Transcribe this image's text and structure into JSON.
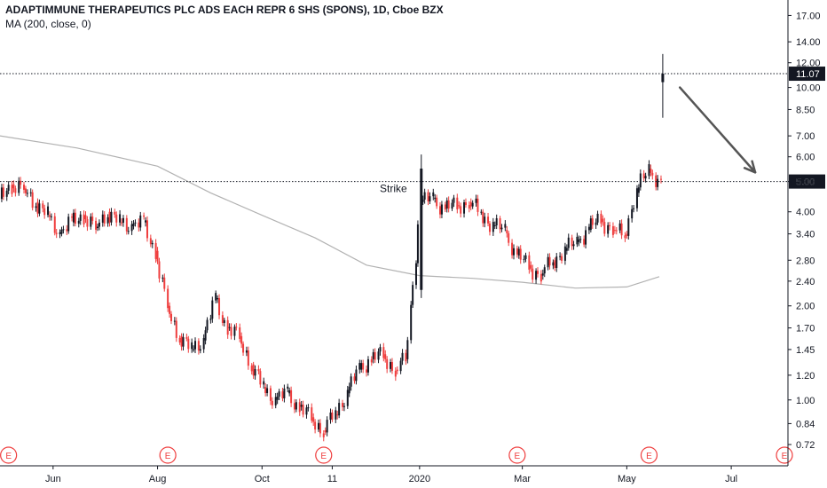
{
  "header": {
    "title": "ADAPTIMMUNE THERAPEUTICS PLC ADS EACH REPR 6 SHS (SPONS), 1D, Cboe BZX",
    "indicator": "MA (200, close, 0)"
  },
  "chart_data": {
    "type": "candlestick",
    "scale": "log",
    "ylim": [
      0.67,
      18.2
    ],
    "y_ticks": [
      "17.00",
      "14.00",
      "12.00",
      "10.00",
      "8.50",
      "7.00",
      "6.00",
      "5.00",
      "4.00",
      "3.40",
      "2.80",
      "2.40",
      "2.00",
      "1.70",
      "1.45",
      "1.20",
      "1.00",
      "0.84",
      "0.72"
    ],
    "x_ticks": [
      "Jun",
      "Aug",
      "Oct",
      "11",
      "2020",
      "Mar",
      "May",
      "Jul"
    ],
    "x_range": [
      "2019-05-01",
      "2020-07-31"
    ],
    "price_lines": [
      {
        "value": 11.07,
        "label": "11.07"
      },
      {
        "value": 5.0,
        "label": "5.00"
      }
    ],
    "annotations": [
      {
        "text": "Strike"
      }
    ],
    "earnings_marker_label": "E",
    "colors": {
      "up": "#131722",
      "down": "#ef3d3d",
      "ma": "#b2b2b2",
      "arrow": "#555555",
      "earnings": "#ef3d3d",
      "badge": "#131722"
    },
    "candles": [
      {
        "date": "2019-05-01",
        "close": 4.4
      },
      {
        "date": "2019-05-08",
        "close": 4.9
      },
      {
        "date": "2019-05-15",
        "close": 4.75
      },
      {
        "date": "2019-05-22",
        "close": 4.3
      },
      {
        "date": "2019-05-29",
        "close": 3.9
      },
      {
        "date": "2019-06-05",
        "close": 3.4
      },
      {
        "date": "2019-06-12",
        "close": 3.7
      },
      {
        "date": "2019-06-19",
        "close": 3.9
      },
      {
        "date": "2019-06-26",
        "close": 3.55
      },
      {
        "date": "2019-07-03",
        "close": 4.0
      },
      {
        "date": "2019-07-10",
        "close": 3.7
      },
      {
        "date": "2019-07-17",
        "close": 3.6
      },
      {
        "date": "2019-07-24",
        "close": 3.7
      },
      {
        "date": "2019-07-31",
        "close": 3.0
      },
      {
        "date": "2019-08-07",
        "close": 2.0
      },
      {
        "date": "2019-08-14",
        "close": 1.6
      },
      {
        "date": "2019-08-21",
        "close": 1.45
      },
      {
        "date": "2019-08-28",
        "close": 1.55
      },
      {
        "date": "2019-09-04",
        "close": 2.1
      },
      {
        "date": "2019-09-11",
        "close": 1.7
      },
      {
        "date": "2019-09-18",
        "close": 1.6
      },
      {
        "date": "2019-09-25",
        "close": 1.3
      },
      {
        "date": "2019-10-02",
        "close": 1.1
      },
      {
        "date": "2019-10-09",
        "close": 1.0
      },
      {
        "date": "2019-10-16",
        "close": 1.05
      },
      {
        "date": "2019-10-23",
        "close": 0.95
      },
      {
        "date": "2019-10-30",
        "close": 0.88
      },
      {
        "date": "2019-11-06",
        "close": 0.8
      },
      {
        "date": "2019-11-13",
        "close": 0.9
      },
      {
        "date": "2019-11-20",
        "close": 1.05
      },
      {
        "date": "2019-11-27",
        "close": 1.25
      },
      {
        "date": "2019-12-04",
        "close": 1.35
      },
      {
        "date": "2019-12-11",
        "close": 1.4
      },
      {
        "date": "2019-12-18",
        "close": 1.25
      },
      {
        "date": "2019-12-24",
        "close": 1.35
      },
      {
        "date": "2020-01-02",
        "close": 4.3
      },
      {
        "date": "2020-01-09",
        "close": 4.4
      },
      {
        "date": "2020-01-16",
        "close": 4.1
      },
      {
        "date": "2020-01-23",
        "close": 4.2
      },
      {
        "date": "2020-01-30",
        "close": 4.3
      },
      {
        "date": "2020-02-06",
        "close": 4.0
      },
      {
        "date": "2020-02-13",
        "close": 3.6
      },
      {
        "date": "2020-02-20",
        "close": 3.5
      },
      {
        "date": "2020-02-27",
        "close": 2.9
      },
      {
        "date": "2020-03-05",
        "close": 2.7
      },
      {
        "date": "2020-03-12",
        "close": 2.5
      },
      {
        "date": "2020-03-19",
        "close": 2.8
      },
      {
        "date": "2020-03-26",
        "close": 3.0
      },
      {
        "date": "2020-04-02",
        "close": 3.2
      },
      {
        "date": "2020-04-09",
        "close": 3.5
      },
      {
        "date": "2020-04-16",
        "close": 3.8
      },
      {
        "date": "2020-04-23",
        "close": 3.5
      },
      {
        "date": "2020-04-30",
        "close": 3.4
      },
      {
        "date": "2020-05-07",
        "close": 4.6
      },
      {
        "date": "2020-05-14",
        "close": 5.5
      },
      {
        "date": "2020-05-21",
        "close": 4.9
      }
    ],
    "moving_average": [
      {
        "date": "2019-05-01",
        "value": 7.0
      },
      {
        "date": "2019-06-15",
        "value": 6.4
      },
      {
        "date": "2019-08-01",
        "value": 5.6
      },
      {
        "date": "2019-09-01",
        "value": 4.6
      },
      {
        "date": "2019-10-01",
        "value": 3.9
      },
      {
        "date": "2019-11-01",
        "value": 3.3
      },
      {
        "date": "2019-12-01",
        "value": 2.7
      },
      {
        "date": "2020-01-01",
        "value": 2.5
      },
      {
        "date": "2020-02-01",
        "value": 2.45
      },
      {
        "date": "2020-03-01",
        "value": 2.38
      },
      {
        "date": "2020-04-01",
        "value": 2.28
      },
      {
        "date": "2020-05-01",
        "value": 2.3
      },
      {
        "date": "2020-05-20",
        "value": 2.48
      }
    ],
    "spike_candle": {
      "date": "2020-05-22",
      "open": 10.4,
      "close": 11.07,
      "high": 12.8,
      "low": 8.0
    }
  }
}
